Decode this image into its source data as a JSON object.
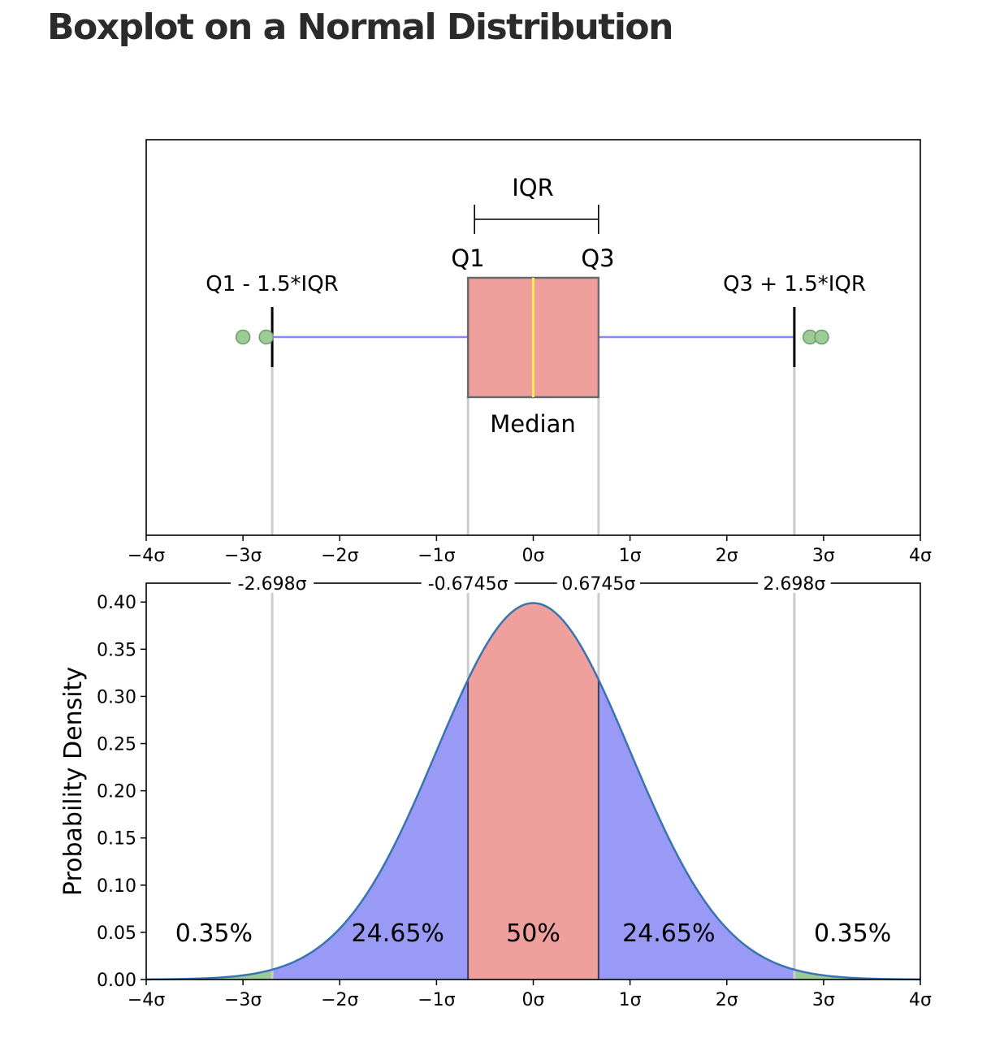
{
  "page": {
    "title": "Boxplot on a Normal Distribution"
  },
  "colors": {
    "box_fill": "#f0a09c",
    "median": "#ffee55",
    "whisker": "#8888ee",
    "outlier": "#9ccc96",
    "iqr_region": "#f0a09c",
    "mid_region": "#989af6",
    "tail_region": "#9ccc96",
    "curve": "#3a74b0",
    "guide": "#cccccc"
  },
  "chart_data": [
    {
      "type": "boxplot",
      "title": "",
      "xlim": [
        -4,
        4
      ],
      "x_ticks": [
        -4,
        -3,
        -2,
        -1,
        0,
        1,
        2,
        3,
        4
      ],
      "x_tick_labels": [
        "−4σ",
        "−3σ",
        "−2σ",
        "−1σ",
        "0σ",
        "1σ",
        "2σ",
        "3σ",
        "4σ"
      ],
      "q1": -0.6745,
      "median": 0,
      "q3": 0.6745,
      "whisker_low": -2.698,
      "whisker_high": 2.698,
      "outliers": [
        -3.0,
        -2.76,
        2.86,
        2.98
      ],
      "labels": {
        "iqr": "IQR",
        "q1": "Q1",
        "q3": "Q3",
        "lower_fence": "Q1 - 1.5*IQR",
        "upper_fence": "Q3 + 1.5*IQR",
        "median": "Median"
      }
    },
    {
      "type": "area",
      "title": "",
      "ylabel": "Probability Density",
      "xlabel": "",
      "xlim": [
        -4,
        4
      ],
      "ylim": [
        0,
        0.42
      ],
      "mean": 0,
      "sd": 1,
      "x_ticks": [
        -4,
        -3,
        -2,
        -1,
        0,
        1,
        2,
        3,
        4
      ],
      "x_tick_labels": [
        "−4σ",
        "−3σ",
        "−2σ",
        "−1σ",
        "0σ",
        "1σ",
        "2σ",
        "3σ",
        "4σ"
      ],
      "y_ticks": [
        0,
        0.05,
        0.1,
        0.15,
        0.2,
        0.25,
        0.3,
        0.35,
        0.4
      ],
      "y_tick_labels": [
        "0.00",
        "0.05",
        "0.10",
        "0.15",
        "0.20",
        "0.25",
        "0.30",
        "0.35",
        "0.40"
      ],
      "boundaries": [
        {
          "x": -2.698,
          "label": "-2.698σ"
        },
        {
          "x": -0.6745,
          "label": "-0.6745σ"
        },
        {
          "x": 0.6745,
          "label": "0.6745σ"
        },
        {
          "x": 2.698,
          "label": "2.698σ"
        }
      ],
      "regions": [
        {
          "from": -4,
          "to": -2.698,
          "fill": "tail",
          "label": "0.35%",
          "label_x": -3.3
        },
        {
          "from": -2.698,
          "to": -0.6745,
          "fill": "mid",
          "label": "24.65%",
          "label_x": -1.4
        },
        {
          "from": -0.6745,
          "to": 0.6745,
          "fill": "iqr",
          "label": "50%",
          "label_x": 0
        },
        {
          "from": 0.6745,
          "to": 2.698,
          "fill": "mid",
          "label": "24.65%",
          "label_x": 1.4
        },
        {
          "from": 2.698,
          "to": 4,
          "fill": "tail",
          "label": "0.35%",
          "label_x": 3.3
        }
      ]
    }
  ]
}
